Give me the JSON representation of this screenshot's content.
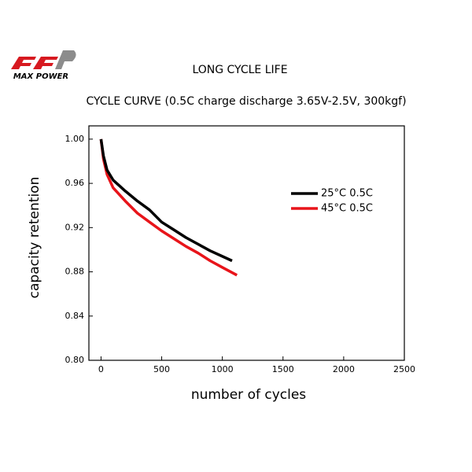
{
  "logo": {
    "text": "MAX POWER"
  },
  "chart_data": {
    "type": "line",
    "title": "LONG CYCLE LIFE",
    "subtitle": "CYCLE CURVE (0.5C charge discharge 3.65V-2.5V, 300kgf)",
    "x_label": "number of cycles",
    "y_label": "capacity retention",
    "xlim": [
      -100,
      2500
    ],
    "xticks": [
      0,
      500,
      1000,
      1500,
      2000,
      2500
    ],
    "ylim": [
      0.8,
      1.012
    ],
    "yticks": [
      {
        "value": 0.8,
        "label": "0.80"
      },
      0.84,
      0.88,
      0.92,
      0.96,
      {
        "value": 1.0,
        "label": "1.00"
      }
    ],
    "grid": false,
    "legend": "right",
    "series": [
      {
        "name": "25°C 0.5C",
        "color": "#000000",
        "x": [
          0,
          20,
          50,
          100,
          200,
          300,
          400,
          500,
          600,
          700,
          800,
          900,
          1000,
          1080
        ],
        "values": [
          1.0,
          0.985,
          0.972,
          0.963,
          0.953,
          0.944,
          0.936,
          0.925,
          0.918,
          0.911,
          0.905,
          0.899,
          0.894,
          0.89
        ]
      },
      {
        "name": "45°C 0.5C",
        "color": "#e8141a",
        "x": [
          0,
          20,
          50,
          100,
          200,
          300,
          400,
          500,
          600,
          700,
          800,
          900,
          1000,
          1120
        ],
        "values": [
          1.0,
          0.982,
          0.968,
          0.956,
          0.944,
          0.933,
          0.925,
          0.917,
          0.91,
          0.903,
          0.897,
          0.89,
          0.884,
          0.877
        ]
      }
    ]
  }
}
